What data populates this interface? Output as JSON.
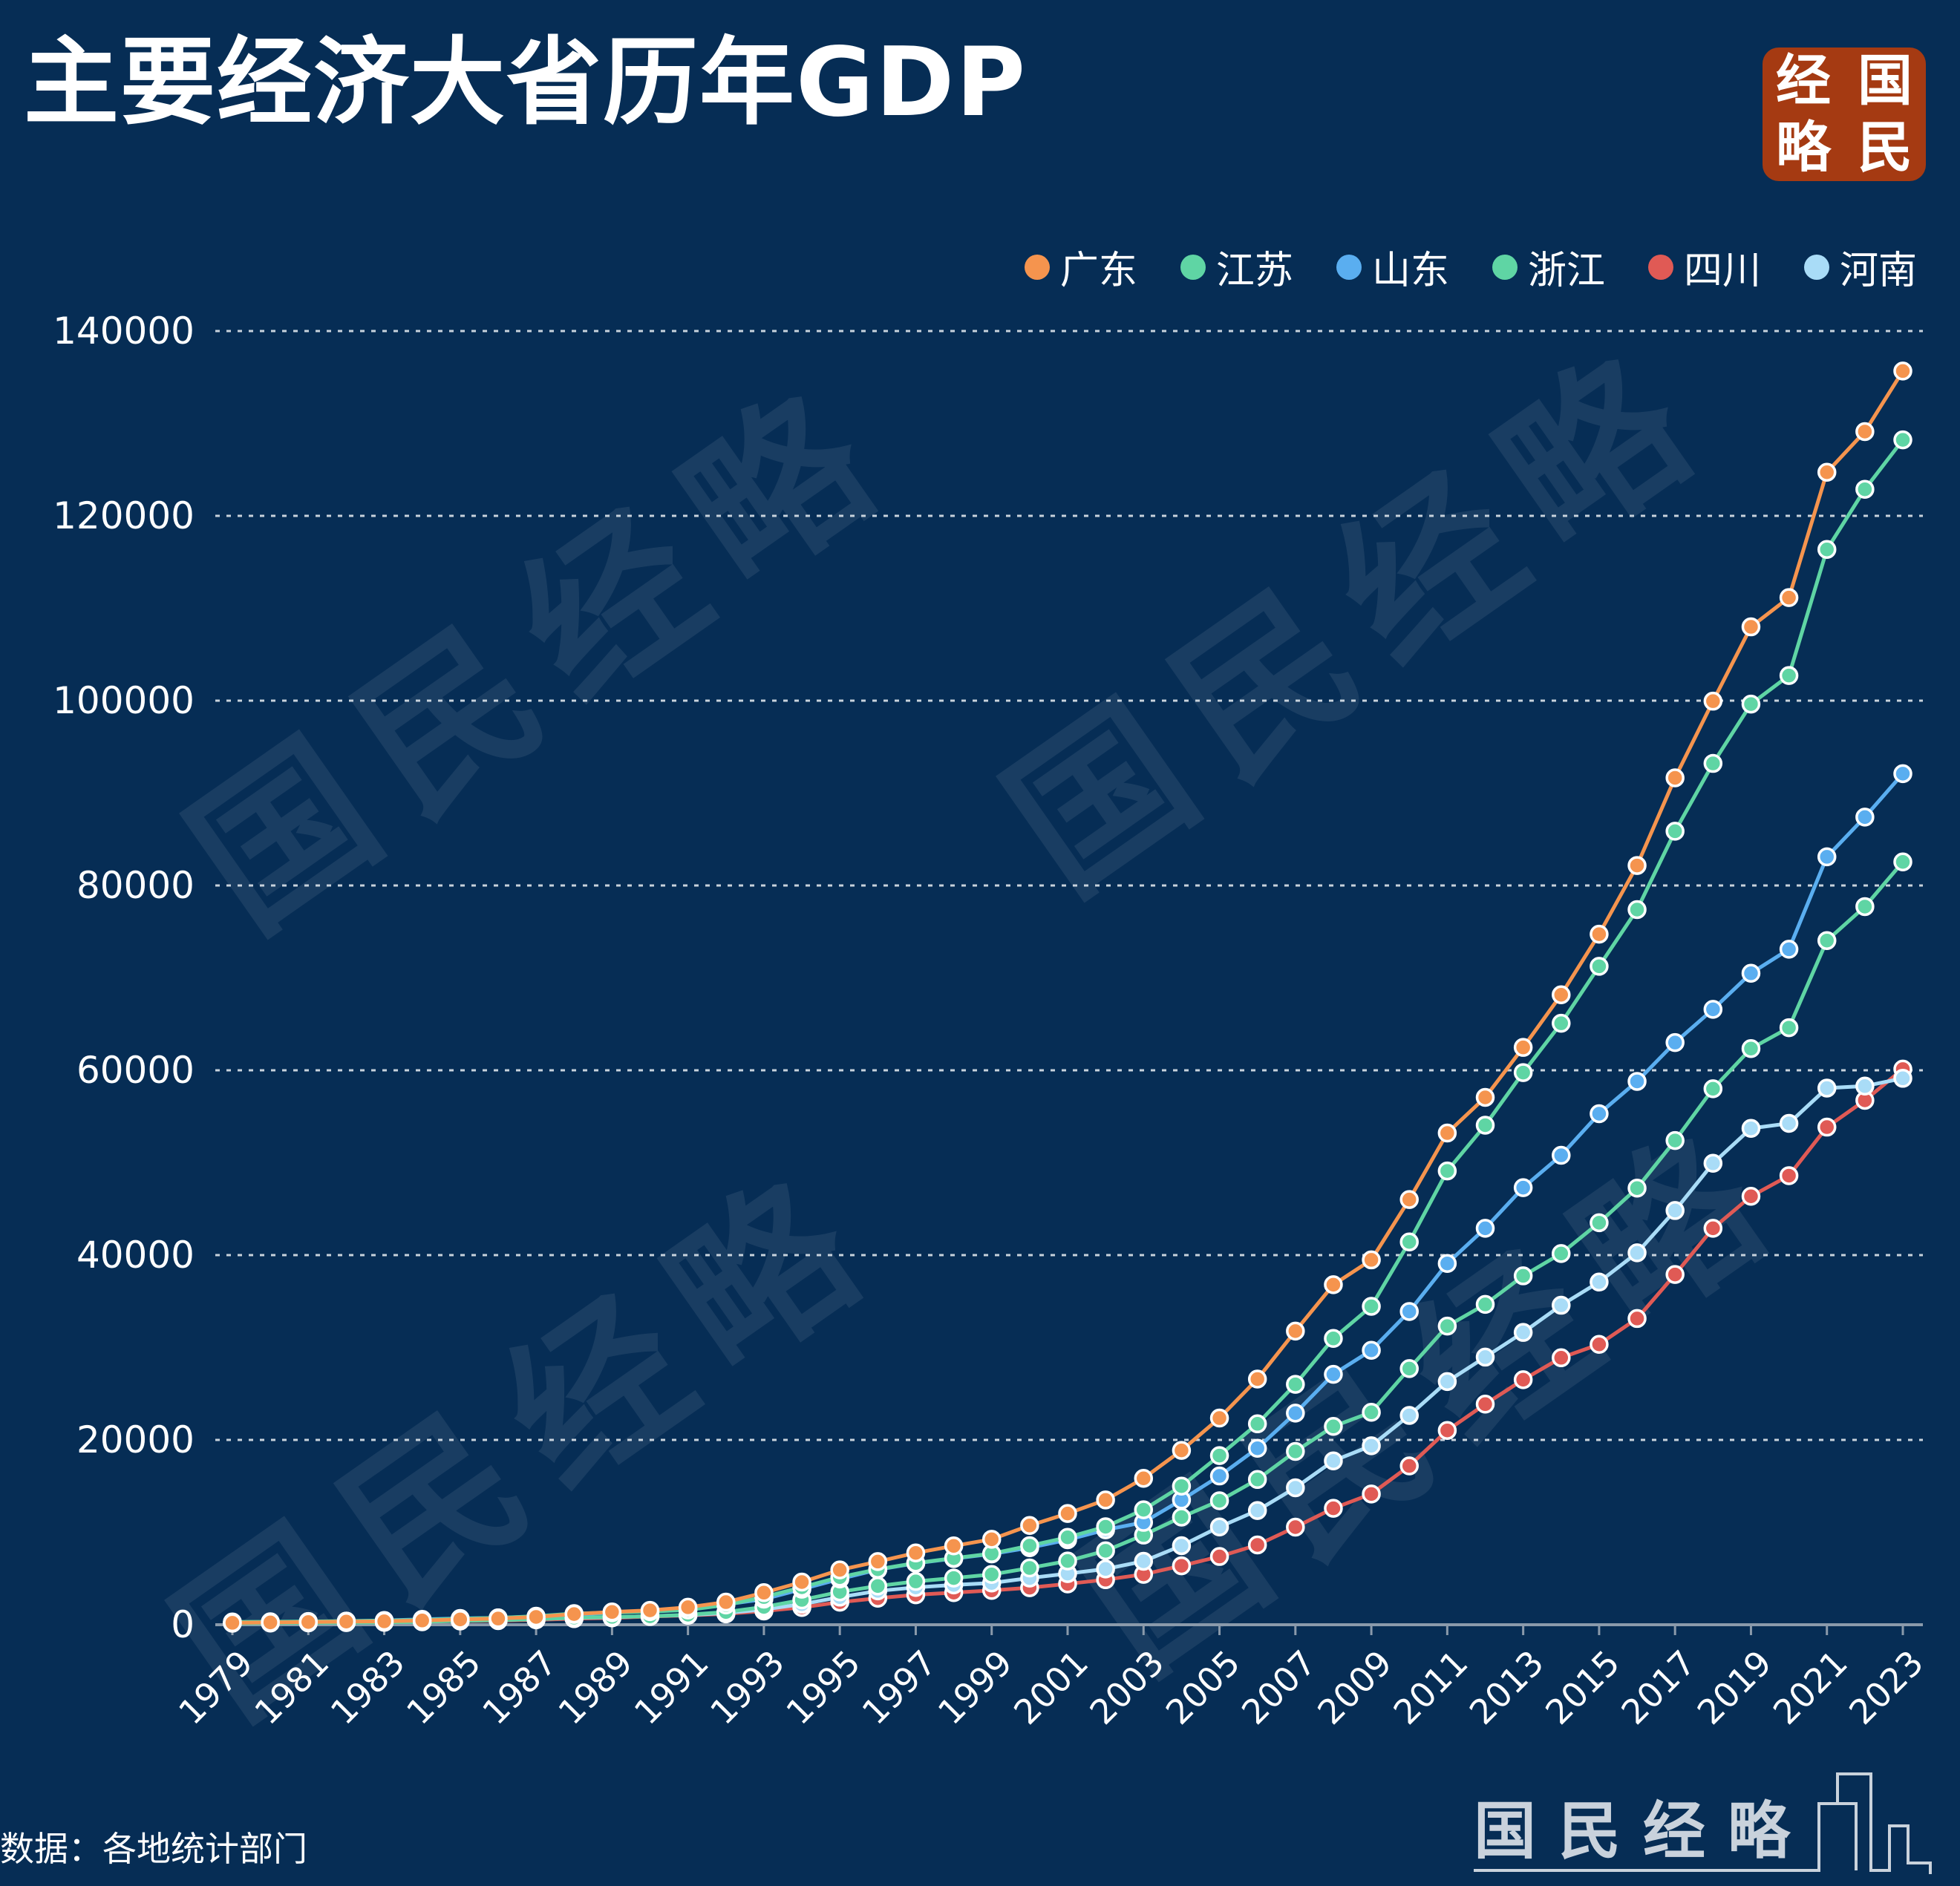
{
  "title": "主要经济大省历年GDP",
  "logo": {
    "chars": [
      "经",
      "国",
      "略",
      "民"
    ],
    "bg_color": "#a53a12"
  },
  "watermark": "国民经略",
  "source": "数据：各地统计部门",
  "brand": "国民经略",
  "chart_data": {
    "type": "line",
    "title": "主要经济大省历年GDP",
    "xlabel": "",
    "ylabel": "",
    "ylim": [
      0,
      140000
    ],
    "yticks": [
      "0",
      "20000",
      "40000",
      "60000",
      "80000",
      "100000",
      "120000",
      "140000"
    ],
    "grid": true,
    "legend_position": "top-right",
    "x": [
      1979,
      1980,
      1981,
      1982,
      1983,
      1984,
      1985,
      1986,
      1987,
      1988,
      1989,
      1990,
      1991,
      1992,
      1993,
      1994,
      1995,
      1996,
      1997,
      1998,
      1999,
      2000,
      2001,
      2002,
      2003,
      2004,
      2005,
      2006,
      2007,
      2008,
      2009,
      2010,
      2011,
      2012,
      2013,
      2014,
      2015,
      2016,
      2017,
      2018,
      2019,
      2020,
      2021,
      2022,
      2023
    ],
    "xtick_labels": [
      "1979",
      "1981",
      "1983",
      "1985",
      "1987",
      "1989",
      "1991",
      "1993",
      "1995",
      "1997",
      "1999",
      "2001",
      "2003",
      "2005",
      "2007",
      "2009",
      "2011",
      "2013",
      "2015",
      "2017",
      "2019",
      "2021",
      "2023"
    ],
    "series": [
      {
        "name": "广东",
        "color": "#f5944e",
        "values": [
          209,
          250,
          290,
          340,
          368,
          458,
          577,
          668,
          847,
          1155,
          1381,
          1559,
          1893,
          2448,
          3469,
          4619,
          5933,
          6834,
          7775,
          8531,
          9251,
          10741,
          12039,
          13502,
          15845,
          18865,
          22367,
          26588,
          31777,
          36797,
          39483,
          46013,
          53210,
          57068,
          62475,
          68173,
          74732,
          82163,
          91649,
          99945,
          107987,
          111152,
          124720,
          129119,
          135673
        ]
      },
      {
        "name": "江苏",
        "color": "#5fd5a4",
        "values": [
          298,
          320,
          350,
          390,
          438,
          518,
          652,
          744,
          922,
          1208,
          1322,
          1417,
          1601,
          2136,
          2998,
          4057,
          5155,
          6004,
          6680,
          7200,
          7698,
          8554,
          9457,
          10607,
          12443,
          15004,
          18306,
          21742,
          26018,
          30982,
          34457,
          41425,
          49110,
          54058,
          59753,
          65088,
          71256,
          77388,
          85870,
          93208,
          99632,
          102719,
          116364,
          122876,
          128222
        ]
      },
      {
        "name": "山东",
        "color": "#5aaef0",
        "values": [
          225,
          292,
          346,
          396,
          459,
          582,
          681,
          742,
          892,
          1117,
          1293,
          1511,
          1810,
          2197,
          2771,
          3844,
          4953,
          5960,
          6650,
          7162,
          7662,
          8337,
          9195,
          10276,
          11080,
          13500,
          16100,
          19100,
          22900,
          27100,
          29700,
          33900,
          39100,
          42900,
          47300,
          50800,
          55300,
          58800,
          63000,
          66600,
          70500,
          73100,
          83100,
          87400,
          92100
        ]
      },
      {
        "name": "浙江",
        "color": "#5fd5a4",
        "values": [
          157,
          180,
          204,
          234,
          258,
          323,
          429,
          502,
          607,
          770,
          850,
          905,
          1089,
          1376,
          1926,
          2689,
          3558,
          4189,
          4686,
          5052,
          5444,
          6141,
          6898,
          8004,
          9705,
          11649,
          13418,
          15718,
          18754,
          21463,
          22990,
          27722,
          32319,
          34665,
          37757,
          40173,
          43507,
          47251,
          52403,
          58003,
          62352,
          64613,
          74041,
          77715,
          82553
        ]
      },
      {
        "name": "四川",
        "color": "#e05a55",
        "values": [
          201,
          229,
          240,
          260,
          287,
          343,
          405,
          444,
          531,
          658,
          744,
          890,
          1016,
          1177,
          1486,
          1872,
          2443,
          2871,
          3242,
          3474,
          3712,
          4010,
          4422,
          4875,
          5456,
          6380,
          7385,
          8638,
          10562,
          12601,
          14151,
          17185,
          21027,
          23873,
          26518,
          28891,
          30342,
          33138,
          37905,
          42902,
          46364,
          48599,
          53851,
          56750,
          60133
        ]
      },
      {
        "name": "河南",
        "color": "#a9dcf7",
        "values": [
          190,
          229,
          249,
          263,
          327,
          370,
          451,
          502,
          609,
          749,
          811,
          935,
          1045,
          1279,
          1660,
          2224,
          2988,
          3661,
          4041,
          4308,
          4517,
          5053,
          5533,
          6035,
          6868,
          8554,
          10587,
          12363,
          14824,
          17735,
          19367,
          22655,
          26318,
          28961,
          31632,
          34574,
          37084,
          40249,
          44825,
          49936,
          53718,
          54259,
          58072,
          58290,
          59132
        ]
      }
    ]
  }
}
